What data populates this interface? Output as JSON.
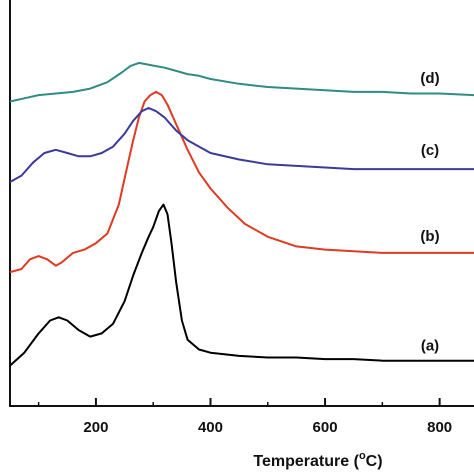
{
  "chart_data": {
    "type": "line",
    "title": "",
    "xlabel_prefix": "Temperature (",
    "xlabel_degree": "o",
    "xlabel_suffix": "C)",
    "ylabel": "",
    "xlim": [
      50,
      860
    ],
    "ylim": [
      0,
      100
    ],
    "xticks": [
      "200",
      "400",
      "600",
      "800"
    ],
    "xtick_values": [
      200,
      400,
      600,
      800
    ],
    "series": [
      {
        "name": "(a)",
        "color": "#000000",
        "x": [
          50,
          75,
          100,
          120,
          135,
          150,
          170,
          190,
          210,
          230,
          250,
          265,
          280,
          292,
          300,
          310,
          318,
          325,
          332,
          340,
          350,
          360,
          380,
          400,
          450,
          500,
          550,
          600,
          650,
          700,
          750,
          800,
          860
        ],
        "y": [
          2,
          6,
          12,
          16,
          17,
          16,
          13,
          11,
          12,
          15,
          22,
          30,
          37,
          42,
          45,
          50,
          52,
          49,
          40,
          28,
          16,
          10,
          7,
          6,
          5,
          4.5,
          4.5,
          4,
          4,
          3.5,
          3.5,
          3.5,
          3.5
        ]
      },
      {
        "name": "(b)",
        "color": "#e03a20",
        "x": [
          50,
          70,
          85,
          100,
          115,
          130,
          140,
          160,
          180,
          200,
          220,
          240,
          255,
          265,
          275,
          285,
          295,
          305,
          315,
          325,
          340,
          360,
          380,
          400,
          430,
          460,
          500,
          550,
          600,
          650,
          700,
          750,
          800,
          860
        ],
        "y": [
          31,
          32,
          35,
          36,
          35,
          33,
          34,
          37,
          38,
          40,
          43,
          52,
          64,
          72,
          79,
          84,
          86,
          87,
          86,
          83,
          77,
          69,
          62,
          57,
          51,
          46,
          42,
          39,
          38,
          37.5,
          37,
          37,
          37,
          37
        ]
      },
      {
        "name": "(c)",
        "color": "#3b3a9c",
        "x": [
          50,
          70,
          90,
          110,
          130,
          150,
          170,
          190,
          210,
          230,
          250,
          265,
          280,
          292,
          305,
          320,
          340,
          360,
          380,
          400,
          450,
          500,
          550,
          600,
          650,
          700,
          750,
          800,
          860
        ],
        "y": [
          59,
          61,
          65,
          68,
          69,
          68,
          67,
          67,
          68,
          70,
          74,
          78,
          81,
          82,
          81,
          79,
          75,
          72,
          70,
          68,
          66,
          64.5,
          64,
          63.5,
          63,
          63,
          63,
          63,
          63
        ]
      },
      {
        "name": "(d)",
        "color": "#2f8c82",
        "x": [
          50,
          75,
          100,
          130,
          160,
          190,
          220,
          245,
          260,
          275,
          290,
          305,
          320,
          340,
          360,
          380,
          400,
          450,
          500,
          550,
          600,
          650,
          700,
          750,
          800,
          860
        ],
        "y": [
          84,
          85,
          86,
          86.5,
          87,
          88,
          90,
          93,
          95,
          96,
          95.5,
          95,
          94.5,
          93.5,
          92.5,
          92,
          91,
          89.5,
          88.5,
          88,
          87.5,
          87,
          87,
          86.5,
          86.5,
          86
        ]
      }
    ]
  }
}
